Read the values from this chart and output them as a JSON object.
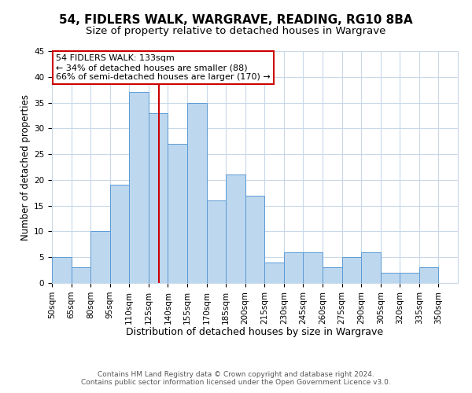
{
  "title": "54, FIDLERS WALK, WARGRAVE, READING, RG10 8BA",
  "subtitle": "Size of property relative to detached houses in Wargrave",
  "xlabel": "Distribution of detached houses by size in Wargrave",
  "ylabel": "Number of detached properties",
  "bin_labels": [
    "50sqm",
    "65sqm",
    "80sqm",
    "95sqm",
    "110sqm",
    "125sqm",
    "140sqm",
    "155sqm",
    "170sqm",
    "185sqm",
    "200sqm",
    "215sqm",
    "230sqm",
    "245sqm",
    "260sqm",
    "275sqm",
    "290sqm",
    "305sqm",
    "320sqm",
    "335sqm",
    "350sqm"
  ],
  "bin_edges": [
    50,
    65,
    80,
    95,
    110,
    125,
    140,
    155,
    170,
    185,
    200,
    215,
    230,
    245,
    260,
    275,
    290,
    305,
    320,
    335,
    350
  ],
  "counts": [
    5,
    3,
    10,
    19,
    37,
    33,
    27,
    35,
    16,
    21,
    17,
    4,
    6,
    6,
    3,
    5,
    6,
    2,
    2,
    3,
    0
  ],
  "bar_color": "#bdd7ee",
  "bar_edgecolor": "#5b9bd5",
  "property_size": 133,
  "vline_color": "#cc0000",
  "annotation_line1": "54 FIDLERS WALK: 133sqm",
  "annotation_line2": "← 34% of detached houses are smaller (88)",
  "annotation_line3": "66% of semi-detached houses are larger (170) →",
  "annotation_box_edgecolor": "#cc0000",
  "annotation_box_facecolor": "#ffffff",
  "footer_line1": "Contains HM Land Registry data © Crown copyright and database right 2024.",
  "footer_line2": "Contains public sector information licensed under the Open Government Licence v3.0.",
  "ylim": [
    0,
    45
  ],
  "yticks": [
    0,
    5,
    10,
    15,
    20,
    25,
    30,
    35,
    40,
    45
  ],
  "xlim_min": 50,
  "xlim_max": 365,
  "background_color": "#ffffff",
  "grid_color": "#c8d8e8",
  "title_fontsize": 11,
  "subtitle_fontsize": 9.5,
  "xlabel_fontsize": 9,
  "ylabel_fontsize": 8.5,
  "tick_fontsize": 7.5,
  "annotation_fontsize": 8,
  "footer_fontsize": 6.5
}
